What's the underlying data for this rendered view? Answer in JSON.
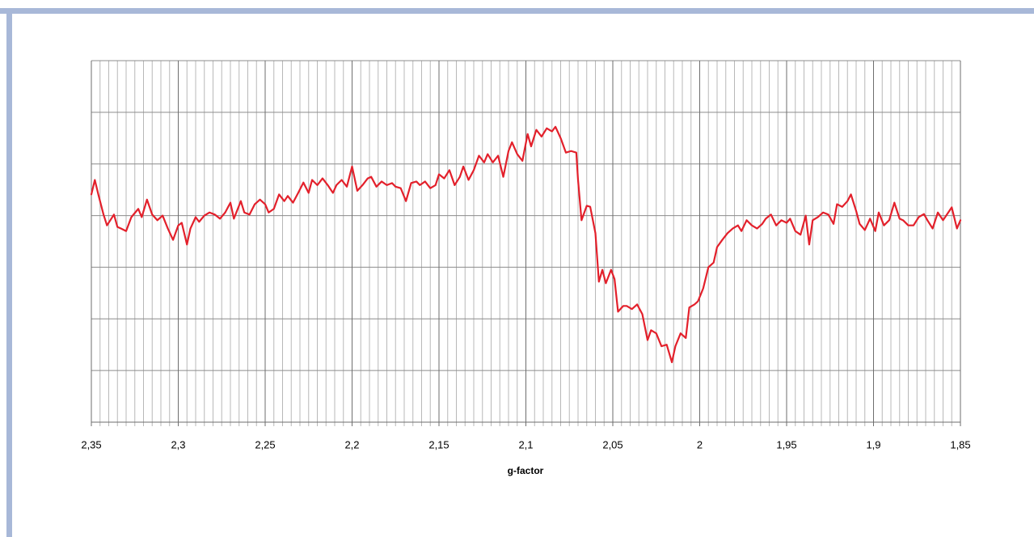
{
  "chart_data": {
    "type": "line",
    "x_label": "g-factor",
    "xlim": [
      2.35,
      1.85
    ],
    "xticks": [
      {
        "value": 2.35,
        "label": "2,35"
      },
      {
        "value": 2.3,
        "label": "2,3"
      },
      {
        "value": 2.25,
        "label": "2,25"
      },
      {
        "value": 2.2,
        "label": "2,2"
      },
      {
        "value": 2.15,
        "label": "2,15"
      },
      {
        "value": 2.1,
        "label": "2,1"
      },
      {
        "value": 2.05,
        "label": "2,05"
      },
      {
        "value": 2,
        "label": "2"
      },
      {
        "value": 1.95,
        "label": "1,95"
      },
      {
        "value": 1.9,
        "label": "1,9"
      },
      {
        "value": 1.85,
        "label": "1,85"
      }
    ],
    "ylim": [
      0,
      7
    ],
    "yticks": [
      0,
      1,
      2,
      3,
      4,
      5,
      6,
      7
    ],
    "grid": true,
    "series": [
      {
        "color": "#e3202b",
        "x": [
          2.35,
          2.348,
          2.346,
          2.343,
          2.341,
          2.337,
          2.335,
          2.333,
          2.33,
          2.327,
          2.323,
          2.321,
          2.318,
          2.315,
          2.312,
          2.309,
          2.306,
          2.303,
          2.3,
          2.298,
          2.295,
          2.293,
          2.29,
          2.288,
          2.285,
          2.282,
          2.279,
          2.276,
          2.273,
          2.27,
          2.268,
          2.264,
          2.262,
          2.259,
          2.256,
          2.253,
          2.25,
          2.248,
          2.245,
          2.242,
          2.239,
          2.237,
          2.234,
          2.231,
          2.228,
          2.225,
          2.223,
          2.22,
          2.217,
          2.214,
          2.211,
          2.209,
          2.206,
          2.203,
          2.2,
          2.197,
          2.194,
          2.191,
          2.189,
          2.186,
          2.183,
          2.18,
          2.177,
          2.175,
          2.172,
          2.169,
          2.166,
          2.163,
          2.161,
          2.158,
          2.155,
          2.152,
          2.15,
          2.147,
          2.144,
          2.141,
          2.138,
          2.136,
          2.133,
          2.13,
          2.127,
          2.124,
          2.122,
          2.119,
          2.116,
          2.113,
          2.11,
          2.108,
          2.105,
          2.102,
          2.099,
          2.097,
          2.094,
          2.091,
          2.088,
          2.085,
          2.083,
          2.08,
          2.077,
          2.074,
          2.071,
          2.07,
          2.068,
          2.065,
          2.063,
          2.06,
          2.058,
          2.056,
          2.054,
          2.051,
          2.049,
          2.047,
          2.044,
          2.042,
          2.039,
          2.036,
          2.033,
          2.03,
          2.028,
          2.025,
          2.022,
          2.019,
          2.016,
          2.014,
          2.011,
          2.008,
          2.006,
          2.003,
          2.001,
          1.998,
          1.995,
          1.992,
          1.99,
          1.987,
          1.984,
          1.981,
          1.978,
          1.976,
          1.973,
          1.97,
          1.967,
          1.964,
          1.962,
          1.959,
          1.956,
          1.953,
          1.95,
          1.948,
          1.945,
          1.942,
          1.939,
          1.937,
          1.935,
          1.932,
          1.929,
          1.926,
          1.923,
          1.921,
          1.918,
          1.915,
          1.913,
          1.91,
          1.908,
          1.905,
          1.902,
          1.899,
          1.897,
          1.894,
          1.891,
          1.888,
          1.885,
          1.883,
          1.88,
          1.877,
          1.874,
          1.871,
          1.869,
          1.866,
          1.863,
          1.86,
          1.857,
          1.855,
          1.852,
          1.85
        ],
        "values": [
          4.41,
          4.69,
          4.41,
          4.02,
          3.81,
          4.02,
          3.78,
          3.75,
          3.7,
          3.97,
          4.13,
          3.97,
          4.31,
          4.02,
          3.91,
          4.0,
          3.75,
          3.53,
          3.81,
          3.86,
          3.44,
          3.75,
          3.97,
          3.88,
          4.0,
          4.06,
          4.02,
          3.94,
          4.06,
          4.25,
          3.94,
          4.28,
          4.06,
          4.02,
          4.22,
          4.31,
          4.22,
          4.06,
          4.13,
          4.41,
          4.28,
          4.38,
          4.25,
          4.44,
          4.64,
          4.44,
          4.69,
          4.59,
          4.72,
          4.59,
          4.44,
          4.59,
          4.69,
          4.56,
          4.95,
          4.48,
          4.59,
          4.72,
          4.75,
          4.56,
          4.66,
          4.59,
          4.63,
          4.56,
          4.53,
          4.28,
          4.63,
          4.66,
          4.59,
          4.66,
          4.53,
          4.59,
          4.8,
          4.72,
          4.88,
          4.59,
          4.75,
          4.95,
          4.69,
          4.88,
          5.16,
          5.03,
          5.19,
          5.03,
          5.16,
          4.75,
          5.25,
          5.42,
          5.19,
          5.06,
          5.58,
          5.34,
          5.66,
          5.53,
          5.69,
          5.63,
          5.72,
          5.5,
          5.22,
          5.25,
          5.22,
          4.69,
          3.91,
          4.19,
          4.17,
          3.66,
          2.72,
          2.95,
          2.69,
          2.95,
          2.77,
          2.14,
          2.25,
          2.25,
          2.19,
          2.28,
          2.09,
          1.59,
          1.78,
          1.72,
          1.47,
          1.5,
          1.16,
          1.47,
          1.72,
          1.63,
          2.22,
          2.28,
          2.34,
          2.59,
          3.0,
          3.09,
          3.39,
          3.53,
          3.66,
          3.75,
          3.81,
          3.7,
          3.91,
          3.81,
          3.75,
          3.84,
          3.94,
          4.02,
          3.81,
          3.91,
          3.86,
          3.94,
          3.7,
          3.63,
          4.0,
          3.44,
          3.91,
          3.97,
          4.06,
          4.02,
          3.84,
          4.22,
          4.17,
          4.28,
          4.41,
          4.09,
          3.84,
          3.72,
          3.94,
          3.7,
          4.06,
          3.81,
          3.91,
          4.25,
          3.94,
          3.91,
          3.81,
          3.81,
          3.97,
          4.03,
          3.91,
          3.75,
          4.06,
          3.91,
          4.06,
          4.16,
          3.75,
          3.91
        ]
      }
    ]
  }
}
